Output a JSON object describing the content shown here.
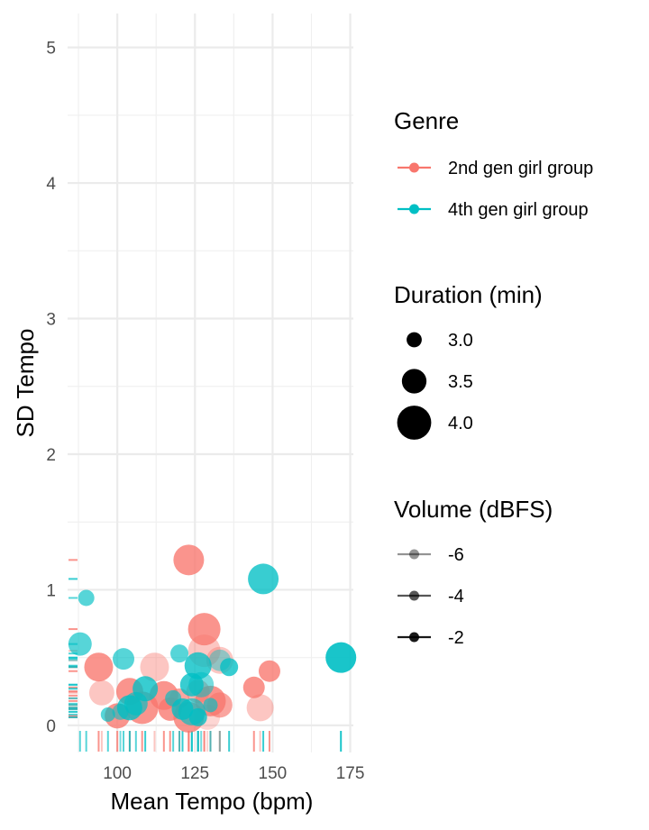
{
  "chart_data": {
    "type": "scatter",
    "xlabel": "Mean Tempo (bpm)",
    "ylabel": "SD Tempo",
    "xlim": [
      84,
      176
    ],
    "ylim": [
      -0.2,
      5.25
    ],
    "x_ticks": [
      100,
      125,
      150,
      175
    ],
    "y_ticks": [
      0,
      1,
      2,
      3,
      4,
      5
    ],
    "grid": true,
    "legend_position": "right",
    "rug": true,
    "series": [
      {
        "name": "2nd gen girl group",
        "color": "#F8766D",
        "points": [
          {
            "x": 123,
            "y": 1.22,
            "duration": 3.9,
            "volume": -3
          },
          {
            "x": 128,
            "y": 0.71,
            "duration": 4.0,
            "volume": -3
          },
          {
            "x": 128,
            "y": 0.55,
            "duration": 4.0,
            "volume": -6
          },
          {
            "x": 133,
            "y": 0.48,
            "duration": 3.7,
            "volume": -6
          },
          {
            "x": 112,
            "y": 0.43,
            "duration": 3.8,
            "volume": -6
          },
          {
            "x": 94,
            "y": 0.43,
            "duration": 3.8,
            "volume": -3
          },
          {
            "x": 149,
            "y": 0.4,
            "duration": 3.4,
            "volume": -3
          },
          {
            "x": 144,
            "y": 0.28,
            "duration": 3.4,
            "volume": -3
          },
          {
            "x": 95,
            "y": 0.24,
            "duration": 3.6,
            "volume": -6
          },
          {
            "x": 104,
            "y": 0.25,
            "duration": 3.7,
            "volume": -3
          },
          {
            "x": 115,
            "y": 0.22,
            "duration": 3.8,
            "volume": -3
          },
          {
            "x": 117,
            "y": 0.12,
            "duration": 3.5,
            "volume": -3
          },
          {
            "x": 108,
            "y": 0.13,
            "duration": 4.0,
            "volume": -3
          },
          {
            "x": 100,
            "y": 0.07,
            "duration": 3.6,
            "volume": -3
          },
          {
            "x": 123,
            "y": 0.06,
            "duration": 3.9,
            "volume": -3
          },
          {
            "x": 130,
            "y": 0.18,
            "duration": 3.9,
            "volume": -3
          },
          {
            "x": 133,
            "y": 0.15,
            "duration": 3.6,
            "volume": -4
          },
          {
            "x": 146,
            "y": 0.13,
            "duration": 3.7,
            "volume": -6
          },
          {
            "x": 129,
            "y": 0.06,
            "duration": 3.6,
            "volume": -7
          },
          {
            "x": 120,
            "y": 0.2,
            "duration": 3.3,
            "volume": -4
          },
          {
            "x": 126,
            "y": 0.25,
            "duration": 3.5,
            "volume": -5
          }
        ]
      },
      {
        "name": "4th gen girl group",
        "color": "#00BFC4",
        "points": [
          {
            "x": 147,
            "y": 1.08,
            "duration": 3.9,
            "volume": -3
          },
          {
            "x": 172,
            "y": 0.5,
            "duration": 3.9,
            "volume": -2
          },
          {
            "x": 90,
            "y": 0.94,
            "duration": 3.1,
            "volume": -4
          },
          {
            "x": 88,
            "y": 0.6,
            "duration": 3.5,
            "volume": -4
          },
          {
            "x": 102,
            "y": 0.49,
            "duration": 3.4,
            "volume": -4
          },
          {
            "x": 120,
            "y": 0.53,
            "duration": 3.2,
            "volume": -4
          },
          {
            "x": 126,
            "y": 0.44,
            "duration": 3.7,
            "volume": -3
          },
          {
            "x": 133,
            "y": 0.48,
            "duration": 3.4,
            "volume": -6
          },
          {
            "x": 136,
            "y": 0.43,
            "duration": 3.2,
            "volume": -3
          },
          {
            "x": 109,
            "y": 0.27,
            "duration": 3.6,
            "volume": -3
          },
          {
            "x": 124,
            "y": 0.3,
            "duration": 3.5,
            "volume": -3
          },
          {
            "x": 127,
            "y": 0.3,
            "duration": 3.6,
            "volume": -5
          },
          {
            "x": 104,
            "y": 0.13,
            "duration": 3.6,
            "volume": -3
          },
          {
            "x": 106,
            "y": 0.16,
            "duration": 3.5,
            "volume": -4
          },
          {
            "x": 97,
            "y": 0.08,
            "duration": 3.0,
            "volume": -4
          },
          {
            "x": 118,
            "y": 0.2,
            "duration": 3.1,
            "volume": -4
          },
          {
            "x": 121,
            "y": 0.12,
            "duration": 3.4,
            "volume": -3
          },
          {
            "x": 124,
            "y": 0.1,
            "duration": 3.7,
            "volume": -4
          },
          {
            "x": 126,
            "y": 0.06,
            "duration": 3.2,
            "volume": -3
          },
          {
            "x": 130,
            "y": 0.15,
            "duration": 3.0,
            "volume": -4
          },
          {
            "x": 101,
            "y": 0.1,
            "duration": 3.1,
            "volume": -5
          }
        ]
      }
    ],
    "legends": {
      "color": {
        "title": "Genre",
        "entries": [
          {
            "label": "2nd gen girl group",
            "color": "#F8766D"
          },
          {
            "label": "4th gen girl group",
            "color": "#00BFC4"
          }
        ]
      },
      "size": {
        "title": "Duration (min)",
        "entries": [
          {
            "label": "3.0",
            "value": 3.0
          },
          {
            "label": "3.5",
            "value": 3.5
          },
          {
            "label": "4.0",
            "value": 4.0
          }
        ]
      },
      "alpha": {
        "title": "Volume (dBFS)",
        "entries": [
          {
            "label": "-6",
            "value": -6
          },
          {
            "label": "-4",
            "value": -4
          },
          {
            "label": "-2",
            "value": -2
          }
        ]
      }
    }
  }
}
